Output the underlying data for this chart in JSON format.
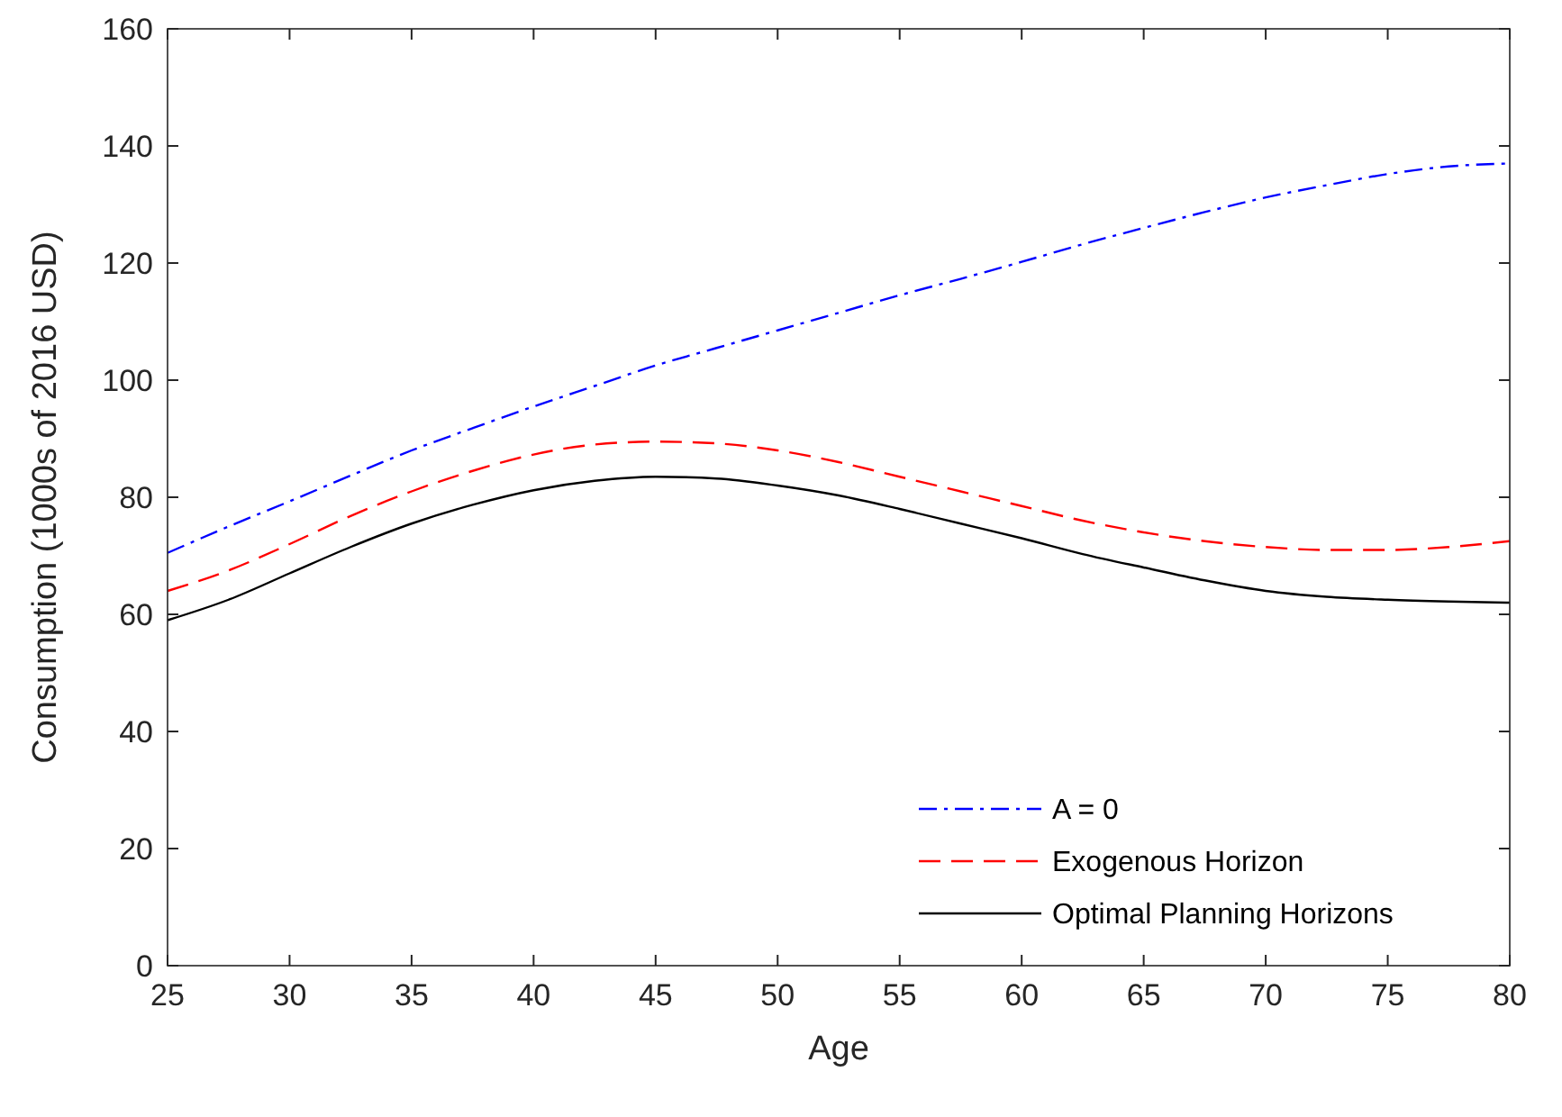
{
  "chart_data": {
    "type": "line",
    "xlabel": "Age",
    "ylabel": "Consumption (1000s of 2016 USD)",
    "x": [
      25,
      27.5,
      30,
      32.5,
      35,
      37.5,
      40,
      42.5,
      45,
      47.5,
      50,
      52.5,
      55,
      57.5,
      60,
      62.5,
      65,
      67.5,
      70,
      72.5,
      75,
      77.5,
      80
    ],
    "series": [
      {
        "name": "A = 0",
        "color": "#0000ff",
        "line_style": "dashdot",
        "values": [
          70.5,
          75,
          79.3,
          83.7,
          88,
          91.8,
          95.5,
          99,
          102.5,
          105.5,
          108.5,
          111.5,
          114.5,
          117.3,
          120.2,
          123.2,
          126,
          128.7,
          131.2,
          133.3,
          135.2,
          136.5,
          137
        ]
      },
      {
        "name": "Exogenous Horizon",
        "color": "#ff0000",
        "line_style": "dashed",
        "values": [
          64,
          67.5,
          72,
          76.8,
          81,
          84.5,
          87.3,
          89,
          89.5,
          89.2,
          88,
          86,
          83.5,
          81,
          78.5,
          76,
          74,
          72.5,
          71.5,
          71,
          71,
          71.5,
          72.5
        ]
      },
      {
        "name": "Optimal Planning Horizons",
        "color": "#000000",
        "line_style": "solid",
        "values": [
          59,
          62.5,
          67,
          71.5,
          75.5,
          78.7,
          81.2,
          82.8,
          83.5,
          83.2,
          82,
          80.3,
          78,
          75.5,
          73,
          70.3,
          68,
          65.8,
          64,
          63,
          62.5,
          62.2,
          62
        ]
      }
    ],
    "xlim": [
      25,
      80
    ],
    "xticks": [
      25,
      30,
      35,
      40,
      45,
      50,
      55,
      60,
      65,
      70,
      75,
      80
    ],
    "ylim": [
      0,
      160
    ],
    "yticks": [
      0,
      20,
      40,
      60,
      80,
      100,
      120,
      140,
      160
    ],
    "grid": false,
    "legend": "bottom right"
  }
}
